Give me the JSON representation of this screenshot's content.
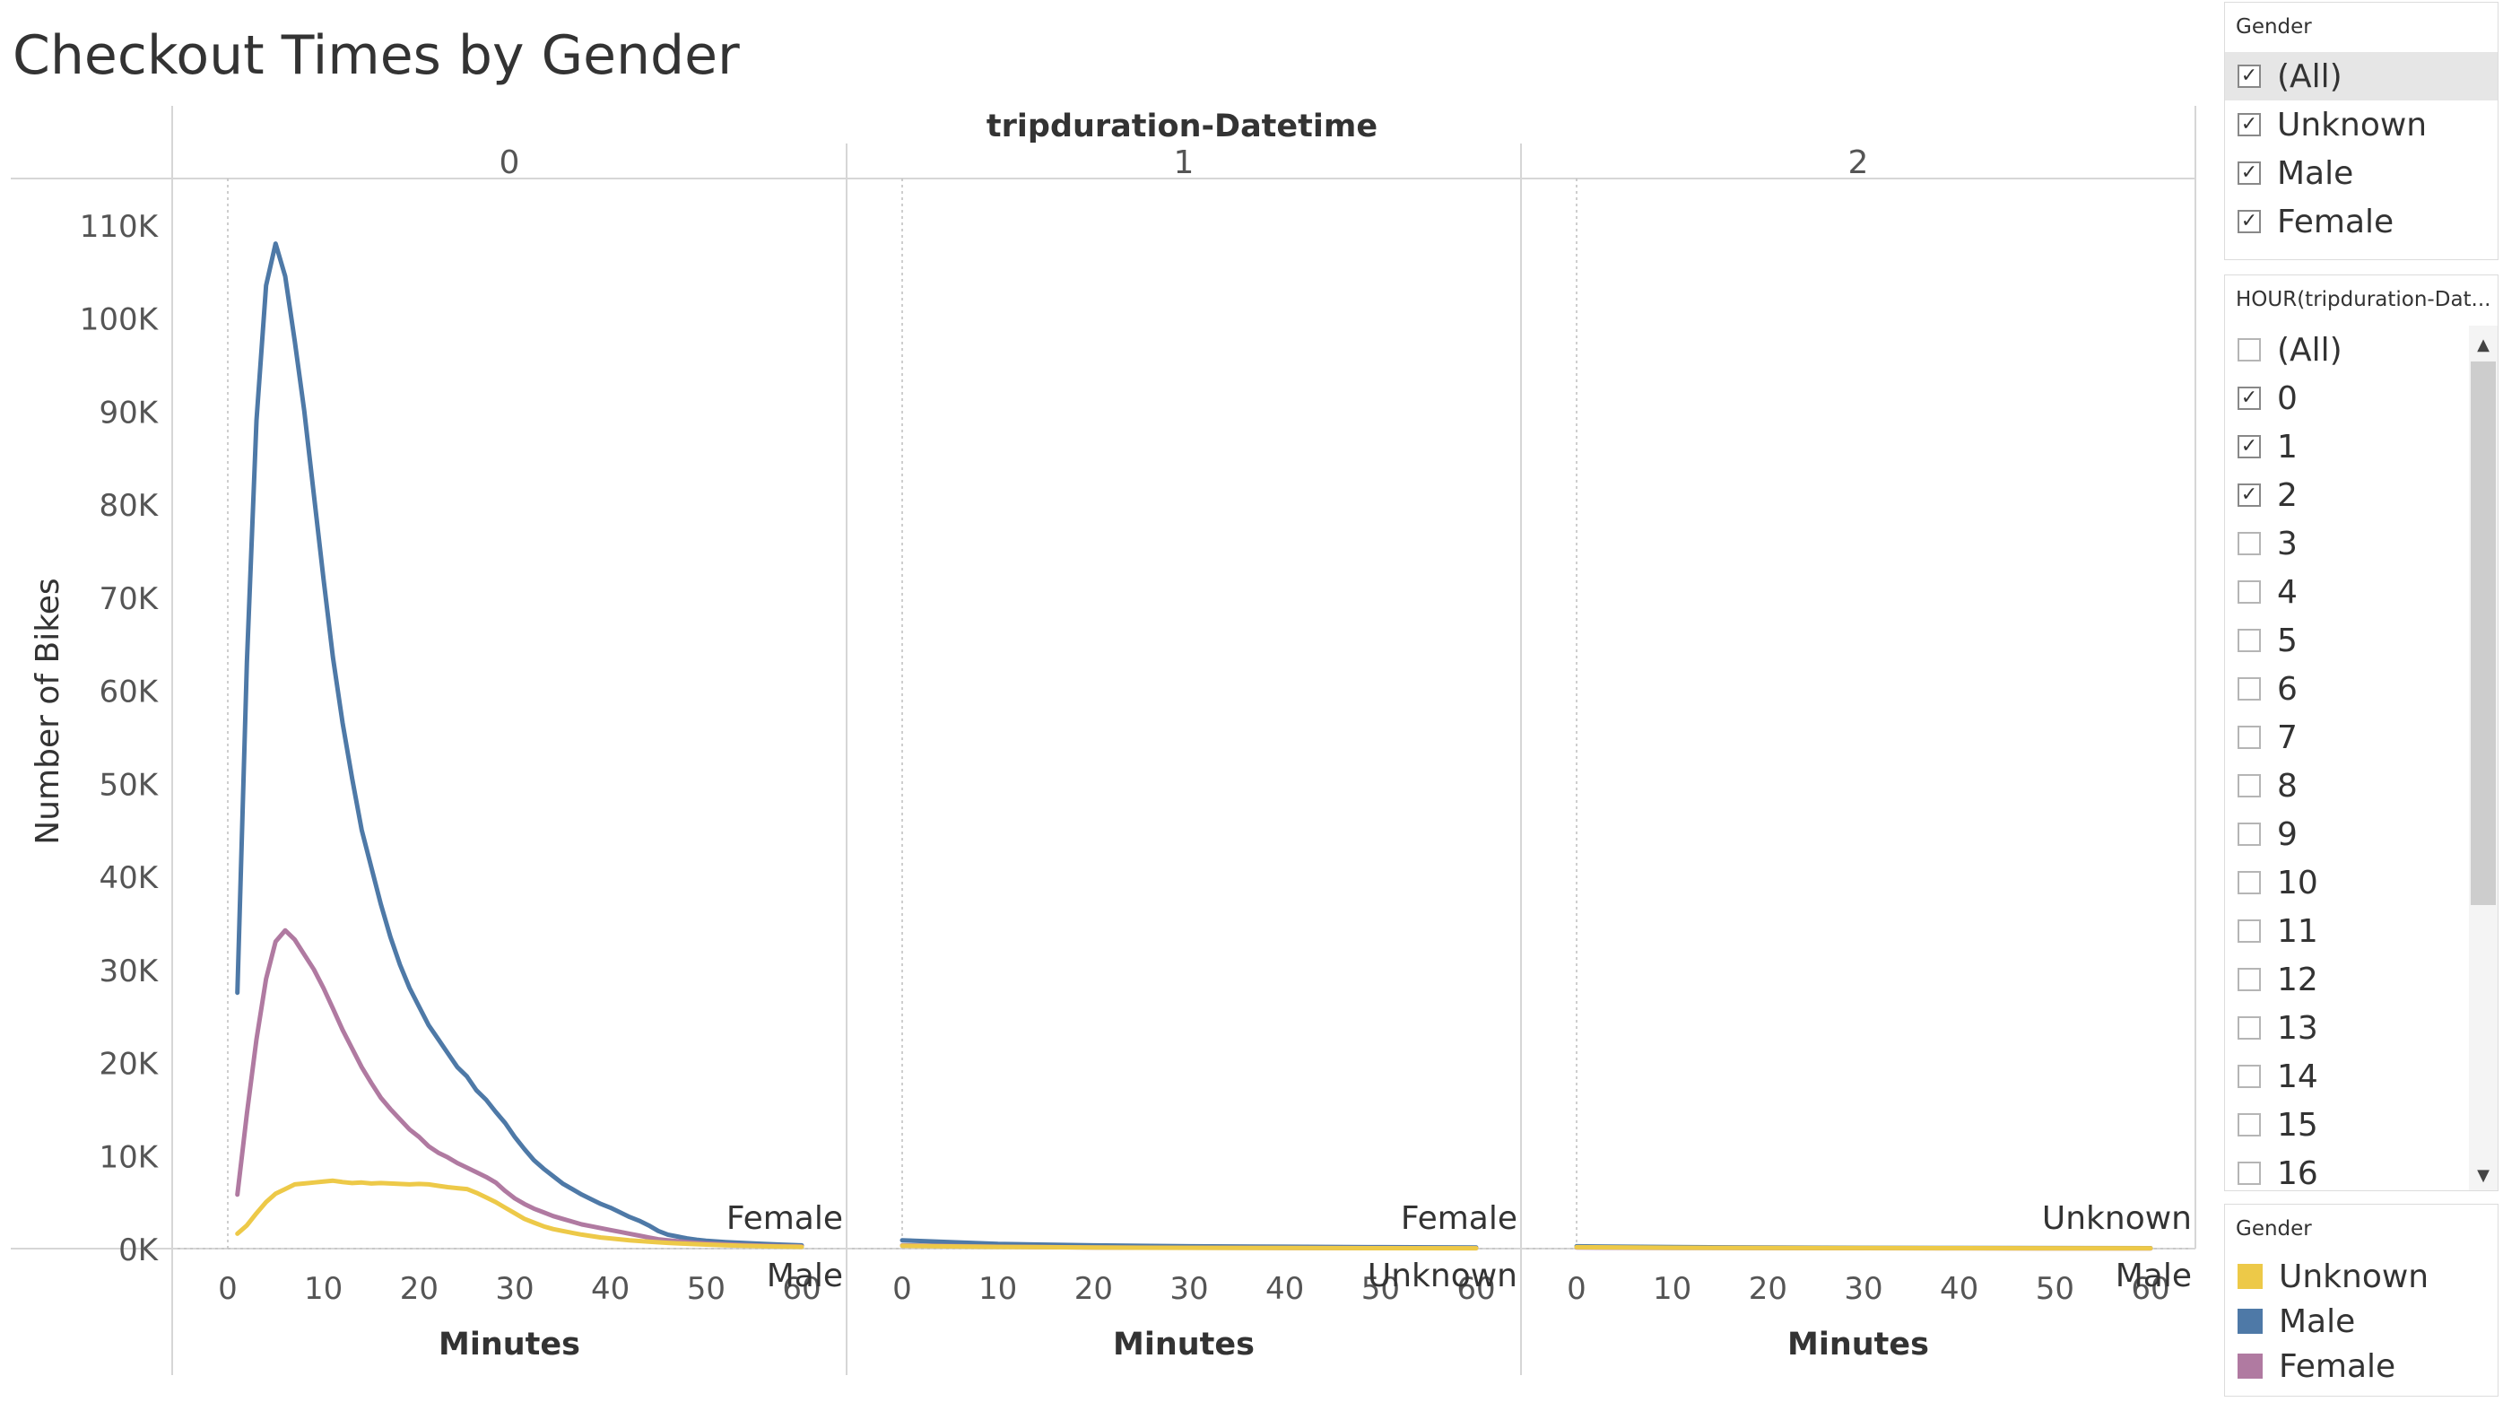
{
  "title": "Checkout Times by Gender",
  "column_header": "tripduration-Datetime",
  "colors": {
    "Unknown": "#EDC948",
    "Male": "#4E79A7",
    "Female": "#B07AA1"
  },
  "gender_filter": {
    "title": "Gender",
    "items": [
      {
        "label": "(All)",
        "checked": true
      },
      {
        "label": "Unknown",
        "checked": true
      },
      {
        "label": "Male",
        "checked": true
      },
      {
        "label": "Female",
        "checked": true
      }
    ]
  },
  "hour_filter": {
    "title": "HOUR(tripduration-Dat...",
    "items": [
      {
        "label": "(All)",
        "checked": false
      },
      {
        "label": "0",
        "checked": true
      },
      {
        "label": "1",
        "checked": true
      },
      {
        "label": "2",
        "checked": true
      },
      {
        "label": "3",
        "checked": false
      },
      {
        "label": "4",
        "checked": false
      },
      {
        "label": "5",
        "checked": false
      },
      {
        "label": "6",
        "checked": false
      },
      {
        "label": "7",
        "checked": false
      },
      {
        "label": "8",
        "checked": false
      },
      {
        "label": "9",
        "checked": false
      },
      {
        "label": "10",
        "checked": false
      },
      {
        "label": "11",
        "checked": false
      },
      {
        "label": "12",
        "checked": false
      },
      {
        "label": "13",
        "checked": false
      },
      {
        "label": "14",
        "checked": false
      },
      {
        "label": "15",
        "checked": false
      },
      {
        "label": "16",
        "checked": false
      }
    ]
  },
  "legend": {
    "title": "Gender",
    "items": [
      {
        "label": "Unknown",
        "color": "#EDC948"
      },
      {
        "label": "Male",
        "color": "#4E79A7"
      },
      {
        "label": "Female",
        "color": "#B07AA1"
      }
    ]
  },
  "chart_data": {
    "type": "line",
    "title": "Checkout Times by Gender",
    "ylabel": "Number of Bikes",
    "xlabel": "Minutes",
    "column_header": "tripduration-Datetime",
    "ylim": [
      0,
      115000
    ],
    "y_ticks": [
      0,
      10000,
      20000,
      30000,
      40000,
      50000,
      60000,
      70000,
      80000,
      90000,
      100000,
      110000
    ],
    "y_tick_labels": [
      "0K",
      "10K",
      "20K",
      "30K",
      "40K",
      "50K",
      "60K",
      "70K",
      "80K",
      "90K",
      "100K",
      "110K"
    ],
    "x_ticks": [
      0,
      10,
      20,
      30,
      40,
      50,
      60
    ],
    "xlim": [
      -3,
      63
    ],
    "grid": false,
    "legend_position": "right",
    "panels": [
      {
        "header": "0",
        "end_labels": [
          {
            "text": "Female",
            "position": "above"
          },
          {
            "text": "Male",
            "position": "below"
          }
        ],
        "series": [
          {
            "name": "Male",
            "x": [
              1,
              2,
              3,
              4,
              5,
              6,
              7,
              8,
              9,
              10,
              11,
              12,
              13,
              14,
              15,
              16,
              17,
              18,
              19,
              20,
              21,
              22,
              23,
              24,
              25,
              26,
              27,
              28,
              29,
              30,
              31,
              32,
              33,
              34,
              35,
              36,
              37,
              38,
              39,
              40,
              41,
              42,
              43,
              44,
              45,
              46,
              47,
              48,
              49,
              50,
              52,
              54,
              56,
              58,
              60
            ],
            "y": [
              27500,
              63000,
              89000,
              103500,
              108000,
              104500,
              97500,
              90000,
              81000,
              72000,
              63500,
              56500,
              50500,
              45000,
              41000,
              37000,
              33500,
              30500,
              28000,
              26000,
              24000,
              22500,
              21000,
              19500,
              18500,
              17000,
              16000,
              14700,
              13500,
              12000,
              10700,
              9500,
              8600,
              7800,
              7000,
              6400,
              5800,
              5300,
              4800,
              4400,
              3900,
              3400,
              3000,
              2500,
              1900,
              1500,
              1300,
              1100,
              950,
              850,
              700,
              600,
              500,
              420,
              350
            ]
          },
          {
            "name": "Female",
            "x": [
              1,
              2,
              3,
              4,
              5,
              6,
              7,
              8,
              9,
              10,
              11,
              12,
              13,
              14,
              15,
              16,
              17,
              18,
              19,
              20,
              21,
              22,
              23,
              24,
              25,
              26,
              27,
              28,
              29,
              30,
              31,
              32,
              33,
              34,
              35,
              36,
              37,
              38,
              39,
              40,
              41,
              42,
              43,
              44,
              45,
              46,
              47,
              48,
              49,
              50,
              52,
              54,
              56,
              58,
              60
            ],
            "y": [
              5800,
              14500,
              22500,
              29000,
              33000,
              34200,
              33200,
              31600,
              30000,
              28000,
              25800,
              23500,
              21500,
              19500,
              17800,
              16200,
              15000,
              13900,
              12800,
              12000,
              11000,
              10300,
              9800,
              9200,
              8700,
              8200,
              7700,
              7100,
              6200,
              5400,
              4800,
              4300,
              3900,
              3500,
              3200,
              2900,
              2600,
              2400,
              2200,
              2000,
              1800,
              1600,
              1400,
              1200,
              1000,
              900,
              800,
              700,
              620,
              550,
              450,
              380,
              320,
              270,
              230
            ]
          },
          {
            "name": "Unknown",
            "x": [
              1,
              2,
              3,
              4,
              5,
              6,
              7,
              8,
              9,
              10,
              11,
              12,
              13,
              14,
              15,
              16,
              17,
              18,
              19,
              20,
              21,
              22,
              23,
              24,
              25,
              26,
              27,
              28,
              29,
              30,
              31,
              32,
              33,
              34,
              35,
              36,
              37,
              38,
              39,
              40,
              42,
              44,
              46,
              48,
              50,
              52,
              54,
              56,
              58,
              60
            ],
            "y": [
              1600,
              2500,
              3800,
              5000,
              5900,
              6400,
              6900,
              7000,
              7100,
              7200,
              7300,
              7150,
              7050,
              7100,
              7000,
              7050,
              7000,
              6950,
              6900,
              6950,
              6900,
              6750,
              6600,
              6500,
              6400,
              6000,
              5500,
              5000,
              4400,
              3800,
              3200,
              2800,
              2400,
              2100,
              1900,
              1700,
              1500,
              1350,
              1200,
              1100,
              900,
              750,
              620,
              520,
              430,
              360,
              300,
              250,
              210,
              180
            ]
          }
        ]
      },
      {
        "header": "1",
        "end_labels": [
          {
            "text": "Female",
            "position": "above"
          },
          {
            "text": "Unknown",
            "position": "below"
          }
        ],
        "series": [
          {
            "name": "Male",
            "x": [
              0,
              10,
              20,
              30,
              40,
              50,
              60
            ],
            "y": [
              900,
              500,
              350,
              250,
              200,
              150,
              120
            ]
          },
          {
            "name": "Female",
            "x": [
              0,
              10,
              20,
              30,
              40,
              50,
              60
            ],
            "y": [
              350,
              200,
              130,
              100,
              80,
              60,
              50
            ]
          },
          {
            "name": "Unknown",
            "x": [
              0,
              10,
              20,
              30,
              40,
              50,
              60
            ],
            "y": [
              300,
              180,
              120,
              90,
              70,
              50,
              40
            ]
          }
        ]
      },
      {
        "header": "2",
        "end_labels": [
          {
            "text": "Unknown",
            "position": "above"
          },
          {
            "text": "Male",
            "position": "below"
          }
        ],
        "series": [
          {
            "name": "Male",
            "x": [
              0,
              10,
              20,
              30,
              40,
              50,
              60
            ],
            "y": [
              250,
              160,
              120,
              90,
              70,
              60,
              50
            ]
          },
          {
            "name": "Female",
            "x": [
              0,
              10,
              20,
              30,
              40,
              50,
              60
            ],
            "y": [
              120,
              80,
              60,
              45,
              35,
              30,
              25
            ]
          },
          {
            "name": "Unknown",
            "x": [
              0,
              10,
              20,
              30,
              40,
              50,
              60
            ],
            "y": [
              150,
              100,
              80,
              60,
              50,
              40,
              35
            ]
          }
        ]
      }
    ]
  }
}
